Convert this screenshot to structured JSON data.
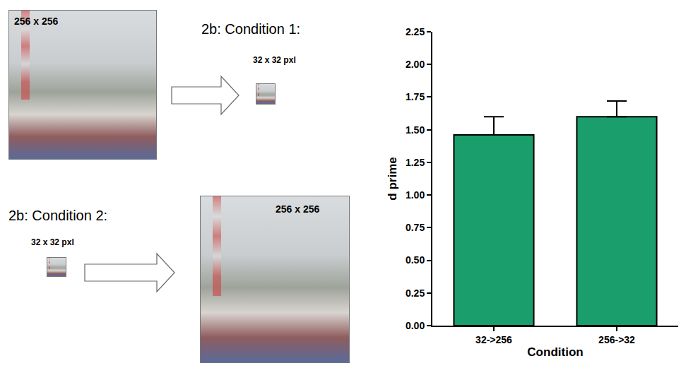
{
  "chart_data": {
    "type": "bar",
    "categories": [
      "32->256",
      "256->32"
    ],
    "values": [
      1.46,
      1.6
    ],
    "errors": [
      0.14,
      0.12
    ],
    "color": "#1a9e6c",
    "x_label": "Condition",
    "y_label": "d prime",
    "ylim": [
      0,
      2.25
    ],
    "yticks": [
      {
        "value": 0,
        "label": "0.00"
      },
      {
        "value": 0.25,
        "label": "0.25"
      },
      {
        "value": 0.5,
        "label": "0.50"
      },
      {
        "value": 0.75,
        "label": "0.75"
      },
      {
        "value": 1,
        "label": "1.00"
      },
      {
        "value": 1.25,
        "label": "1.25"
      },
      {
        "value": 1.5,
        "label": "1.50"
      },
      {
        "value": 1.75,
        "label": "1.75"
      },
      {
        "value": 2,
        "label": "2.00"
      },
      {
        "value": 2.25,
        "label": "2.25"
      }
    ],
    "grid": false
  },
  "diagram": {
    "condition1": {
      "title": "2b: Condition 1:",
      "from": "256 x 256",
      "to": "32 x 32 pxl"
    },
    "condition2": {
      "title": "2b: Condition 2:",
      "from": "32 x 32 pxl",
      "to": "256 x 256"
    }
  }
}
